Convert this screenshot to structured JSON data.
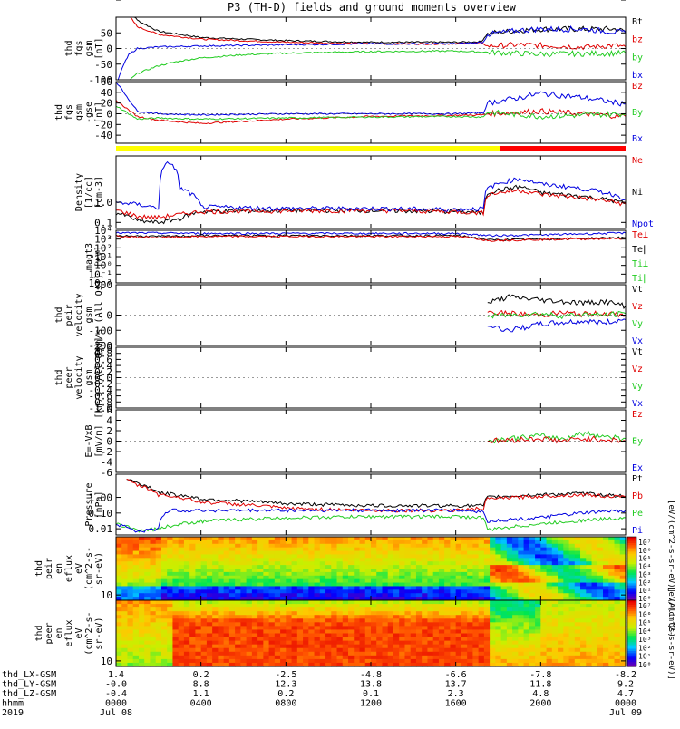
{
  "title": "P3 (TH-D) fields and ground moments overview",
  "chart_data": [
    {
      "type": "line",
      "id": "fgs_gsm",
      "ylabel": [
        "thd",
        "fgs",
        "gsm",
        "[nT]"
      ],
      "yticks": [
        "100",
        "50",
        "0",
        "-50",
        "-100"
      ],
      "ylim": [
        -100,
        100
      ],
      "legend": [
        {
          "label": "Bt",
          "color": "#000000"
        },
        {
          "label": "bz",
          "color": "#e00000"
        },
        {
          "label": "by",
          "color": "#22cc22"
        },
        {
          "label": "bx",
          "color": "#0000e0"
        }
      ],
      "series": [
        {
          "name": "Bt",
          "color": "#000000",
          "x": [
            0.1,
            1,
            2,
            4,
            8,
            12,
            16,
            17.2,
            17.5,
            19,
            20,
            23.5,
            24
          ],
          "y": [
            200,
            90,
            55,
            35,
            25,
            20,
            20,
            22,
            48,
            58,
            62,
            62,
            55
          ]
        },
        {
          "name": "bz",
          "color": "#e00000",
          "x": [
            0.1,
            1,
            2,
            4,
            8,
            12,
            16,
            17.2,
            17.5,
            19,
            20,
            22,
            23.5,
            24
          ],
          "y": [
            150,
            70,
            45,
            30,
            20,
            15,
            15,
            18,
            8,
            12,
            10,
            5,
            10,
            5
          ]
        },
        {
          "name": "by",
          "color": "#22cc22",
          "x": [
            0.5,
            1,
            2,
            3,
            4,
            6,
            8,
            12,
            16,
            17.5,
            20,
            24
          ],
          "y": [
            -110,
            -80,
            -55,
            -40,
            -30,
            -20,
            -15,
            -10,
            -8,
            -12,
            -18,
            -15
          ]
        },
        {
          "name": "bx",
          "color": "#0000e0",
          "x": [
            0.1,
            0.3,
            0.6,
            1,
            2,
            4,
            8,
            12,
            16,
            17.3,
            17.5,
            19,
            20,
            22,
            24
          ],
          "y": [
            -100,
            -60,
            -20,
            0,
            5,
            8,
            12,
            15,
            15,
            20,
            45,
            58,
            62,
            62,
            50
          ]
        }
      ]
    },
    {
      "type": "line",
      "id": "fgs_gse",
      "ylabel": [
        "thd",
        "fgs",
        "gsm",
        "-gse",
        "[nT]"
      ],
      "yticks": [
        "60",
        "40",
        "20",
        "0",
        "-20",
        "-40"
      ],
      "ylim": [
        -55,
        60
      ],
      "legend": [
        {
          "label": "Bz",
          "color": "#e00000"
        },
        {
          "label": "By",
          "color": "#22cc22"
        },
        {
          "label": "Bx",
          "color": "#0000e0"
        }
      ],
      "series": [
        {
          "name": "Bz",
          "color": "#e00000",
          "x": [
            0,
            1,
            2,
            4,
            8,
            12,
            16,
            17.3,
            17.5,
            20,
            24
          ],
          "y": [
            25,
            -5,
            -12,
            -18,
            -10,
            -5,
            -3,
            -2,
            0,
            5,
            -5
          ]
        },
        {
          "name": "By",
          "color": "#22cc22",
          "x": [
            0,
            1,
            2,
            4,
            8,
            12,
            16,
            17.3,
            17.5,
            20,
            24
          ],
          "y": [
            15,
            -10,
            -8,
            -10,
            -8,
            -6,
            -5,
            -6,
            3,
            -5,
            0
          ]
        },
        {
          "name": "Bx",
          "color": "#0000e0",
          "x": [
            0,
            1,
            2,
            4,
            8,
            12,
            16,
            17.3,
            17.5,
            19,
            20,
            22,
            24
          ],
          "y": [
            60,
            5,
            0,
            -2,
            0,
            0,
            0,
            2,
            20,
            30,
            38,
            30,
            18
          ]
        }
      ]
    },
    {
      "type": "line",
      "id": "density",
      "yscale": "log",
      "ylabel": [
        "Density",
        "[1/cc]",
        "[cm-3]"
      ],
      "yticks": [
        "100.0",
        "10.0",
        "1.0",
        "0.1"
      ],
      "ylim": [
        0.05,
        200
      ],
      "legend": [
        {
          "label": "Ne",
          "color": "#e00000"
        },
        {
          "label": "Ni",
          "color": "#000000"
        },
        {
          "label": "Npot",
          "color": "#0000e0"
        }
      ],
      "series": [
        {
          "name": "Ni",
          "color": "#000000",
          "x": [
            0,
            1,
            2,
            3,
            4,
            8,
            12,
            16,
            17.3,
            17.5,
            19,
            20,
            24
          ],
          "y": [
            0.3,
            0.12,
            0.1,
            0.15,
            0.35,
            0.4,
            0.4,
            0.35,
            0.3,
            3,
            6,
            3,
            0.9
          ]
        },
        {
          "name": "Ne",
          "color": "#e00000",
          "x": [
            0,
            1,
            2,
            3,
            4,
            8,
            12,
            16,
            17.3,
            17.5,
            19,
            20,
            24
          ],
          "y": [
            0.4,
            0.2,
            0.18,
            0.25,
            0.35,
            0.38,
            0.4,
            0.35,
            0.3,
            2.5,
            4,
            2.5,
            0.8
          ]
        },
        {
          "name": "Npot",
          "color": "#0000e0",
          "x": [
            0,
            1,
            2,
            2.5,
            3,
            4,
            8,
            12,
            16,
            17.3,
            17.5,
            19,
            20,
            24
          ],
          "y": [
            1,
            0.8,
            0.5,
            100,
            5,
            0.6,
            0.5,
            0.5,
            0.45,
            0.5,
            5,
            15,
            8,
            1.5
          ]
        }
      ]
    },
    {
      "type": "line",
      "id": "temperature",
      "yscale": "log",
      "ylabel": [
        "magt3",
        "[eV]"
      ],
      "yticks": [
        "10⁴",
        "10³",
        "10²",
        "10¹",
        "10⁰",
        "10⁻¹",
        "10⁻²"
      ],
      "ylim": [
        0.01,
        10000
      ],
      "legend": [
        {
          "label": "Te⊥",
          "color": "#e00000"
        },
        {
          "label": "Te∥",
          "color": "#000000"
        },
        {
          "label": "Ti⊥",
          "color": "#22cc22"
        },
        {
          "label": "Ti∥",
          "color": "#22cc22"
        }
      ],
      "series": [
        {
          "name": "Ti",
          "color": "#0000e0",
          "x": [
            0,
            2,
            4,
            8,
            12,
            16,
            17.5,
            20,
            24
          ],
          "y": [
            5000,
            5000,
            4500,
            4500,
            4500,
            4500,
            2500,
            3000,
            5000
          ]
        },
        {
          "name": "Te∥",
          "color": "#000000",
          "x": [
            0,
            2,
            4,
            8,
            12,
            16,
            17.5,
            20,
            24
          ],
          "y": [
            2500,
            2000,
            2500,
            2500,
            2500,
            2500,
            800,
            1000,
            1500
          ]
        },
        {
          "name": "Te⊥",
          "color": "#e00000",
          "x": [
            0,
            2,
            4,
            8,
            12,
            16,
            17.5,
            20,
            24
          ],
          "y": [
            2000,
            1500,
            2000,
            2000,
            2000,
            2000,
            700,
            900,
            1200
          ]
        }
      ]
    },
    {
      "type": "line",
      "id": "peir_velocity",
      "ylabel": [
        "thd",
        "peir",
        "velocity",
        "gsm",
        "[km/s (All Qs)]"
      ],
      "yticks": [
        "200",
        "100",
        "0",
        "-100",
        "-200"
      ],
      "ylim": [
        -200,
        200
      ],
      "legend": [
        {
          "label": "Vt",
          "color": "#000000"
        },
        {
          "label": "Vz",
          "color": "#e00000"
        },
        {
          "label": "Vy",
          "color": "#22cc22"
        },
        {
          "label": "Vx",
          "color": "#0000e0"
        }
      ],
      "series": [
        {
          "name": "Vt",
          "color": "#000000",
          "x": [
            17.5,
            18.5,
            20,
            21,
            22,
            23,
            24
          ],
          "y": [
            80,
            120,
            100,
            90,
            80,
            90,
            60
          ]
        },
        {
          "name": "Vz",
          "color": "#e00000",
          "x": [
            17.5,
            18.5,
            20,
            21,
            22,
            23,
            24
          ],
          "y": [
            20,
            10,
            0,
            15,
            5,
            10,
            0
          ]
        },
        {
          "name": "Vy",
          "color": "#22cc22",
          "x": [
            17.5,
            18.5,
            20,
            21,
            22,
            23,
            24
          ],
          "y": [
            -10,
            0,
            10,
            -5,
            5,
            0,
            10
          ]
        },
        {
          "name": "Vx",
          "color": "#0000e0",
          "x": [
            17.5,
            18.5,
            20,
            21,
            22,
            23,
            24
          ],
          "y": [
            -70,
            -100,
            -60,
            -50,
            -40,
            -50,
            -30
          ]
        }
      ]
    },
    {
      "type": "line",
      "id": "peer_velocity",
      "ylabel": [
        "thd",
        "peer",
        "velocity",
        "gsm",
        "[km/s (All Qs)]"
      ],
      "yticks": [
        "1.0",
        "0.8",
        "0.6",
        "0.4",
        "0.2",
        "0.0",
        "-0.2",
        "-0.4",
        "-0.6",
        "-0.8",
        "-1.0"
      ],
      "ylim": [
        -1,
        1
      ],
      "legend": [
        {
          "label": "Vt",
          "color": "#000000"
        },
        {
          "label": "Vz",
          "color": "#e00000"
        },
        {
          "label": "Vy",
          "color": "#22cc22"
        },
        {
          "label": "Vx",
          "color": "#0000e0"
        }
      ],
      "series": []
    },
    {
      "type": "line",
      "id": "efield",
      "ylabel": [
        "E=-VxB",
        "[mV/m]"
      ],
      "yticks": [
        "6",
        "4",
        "2",
        "0",
        "-2",
        "-4",
        "-6"
      ],
      "ylim": [
        -6,
        6
      ],
      "legend": [
        {
          "label": "Ez",
          "color": "#e00000"
        },
        {
          "label": "Ey",
          "color": "#22cc22"
        },
        {
          "label": "Ex",
          "color": "#0000e0"
        }
      ],
      "series": [
        {
          "name": "Ey",
          "color": "#22cc22",
          "x": [
            17.5,
            18.5,
            20,
            21,
            22,
            23,
            24
          ],
          "y": [
            0,
            0.5,
            1,
            0.5,
            1.5,
            1,
            0.5
          ]
        },
        {
          "name": "Ez",
          "color": "#e00000",
          "x": [
            17.5,
            18.5,
            20,
            21,
            22,
            23,
            24
          ],
          "y": [
            0,
            0.2,
            0.5,
            0,
            0.5,
            0.3,
            0
          ]
        }
      ]
    },
    {
      "type": "line",
      "id": "pressure",
      "yscale": "log",
      "ylabel": [
        "Pressure",
        "[nPa]"
      ],
      "yticks": [
        "10.00",
        "1.00",
        "0.10",
        "0.01"
      ],
      "ylim": [
        0.004,
        30
      ],
      "legend": [
        {
          "label": "Pt",
          "color": "#000000"
        },
        {
          "label": "Pb",
          "color": "#e00000"
        },
        {
          "label": "Pe",
          "color": "#22cc22"
        },
        {
          "label": "Pi",
          "color": "#0000e0"
        }
      ],
      "series": [
        {
          "name": "Pt",
          "color": "#000000",
          "x": [
            0.5,
            1,
            2,
            4,
            8,
            12,
            16,
            17.3,
            17.5,
            20,
            22,
            24
          ],
          "y": [
            15,
            8,
            2,
            0.8,
            0.4,
            0.3,
            0.3,
            0.3,
            1,
            1.5,
            1.8,
            1.2
          ]
        },
        {
          "name": "Pb",
          "color": "#e00000",
          "x": [
            0.5,
            1,
            2,
            4,
            8,
            12,
            16,
            17.3,
            17.5,
            20,
            22,
            24
          ],
          "y": [
            12,
            6,
            1.5,
            0.5,
            0.2,
            0.15,
            0.15,
            0.2,
            0.8,
            1.2,
            1.5,
            1
          ]
        },
        {
          "name": "Pe",
          "color": "#22cc22",
          "x": [
            0,
            1,
            2,
            4,
            8,
            12,
            16,
            17.3,
            17.5,
            20,
            24
          ],
          "y": [
            0.02,
            0.008,
            0.01,
            0.03,
            0.05,
            0.06,
            0.06,
            0.05,
            0.008,
            0.02,
            0.05
          ]
        },
        {
          "name": "Pi",
          "color": "#0000e0",
          "x": [
            0,
            1,
            2,
            2.5,
            4,
            8,
            12,
            16,
            17.3,
            17.5,
            20,
            24
          ],
          "y": [
            0.02,
            0.006,
            0.01,
            0.15,
            0.15,
            0.15,
            0.15,
            0.15,
            0.12,
            0.03,
            0.05,
            0.15
          ]
        }
      ]
    },
    {
      "type": "heatmap",
      "id": "peir_spectrogram",
      "yscale": "log",
      "ylabel": [
        "thd",
        "peir",
        "en",
        "eflux",
        "eV",
        "(cm^2-s-",
        "sr-eV)"
      ],
      "yticks": [
        "10000",
        "1000",
        "100",
        "10"
      ],
      "ylim": [
        5,
        20000
      ],
      "colorbar": {
        "ticks": [
          "10⁷",
          "10⁶",
          "10⁵",
          "10⁴",
          "10³",
          "10²",
          "10¹",
          "10⁰"
        ],
        "label": "[eV/(cm^2-s-sr-eV)] (All Qs)"
      }
    },
    {
      "type": "heatmap",
      "id": "peer_spectrogram",
      "yscale": "log",
      "ylabel": [
        "thd",
        "peer",
        "en",
        "eflux",
        "eV",
        "(cm^2-s-",
        "sr-eV)"
      ],
      "yticks": [
        "10000",
        "1000",
        "100",
        "10"
      ],
      "ylim": [
        5,
        20000
      ],
      "colorbar": {
        "ticks": [
          "10⁷",
          "10⁶",
          "10⁵",
          "10⁴",
          "10³",
          "10²",
          "10¹",
          "10⁰"
        ],
        "label": "[eV/(cm^2-s-sr-eV)]"
      }
    }
  ],
  "x_axis": {
    "range_hours": [
      0,
      24
    ],
    "rows": [
      {
        "label": "thd_LX-GSM",
        "values": [
          "1.4",
          "0.2",
          "-2.5",
          "-4.8",
          "-6.6",
          "-7.8",
          "-8.2"
        ]
      },
      {
        "label": "thd_LY-GSM",
        "values": [
          "-0.0",
          "8.8",
          "12.3",
          "13.8",
          "13.7",
          "11.8",
          "9.2"
        ]
      },
      {
        "label": "thd_LZ-GSM",
        "values": [
          "-0.4",
          "1.1",
          "0.2",
          "0.1",
          "2.3",
          "4.8",
          "4.7"
        ]
      },
      {
        "label": "hhmm",
        "values": [
          "0000",
          "0400",
          "0800",
          "1200",
          "1600",
          "2000",
          "0000"
        ]
      },
      {
        "label": "2019",
        "values": [
          "Jul 08",
          "",
          "",
          "",
          "",
          "",
          "Jul 09"
        ]
      }
    ]
  }
}
